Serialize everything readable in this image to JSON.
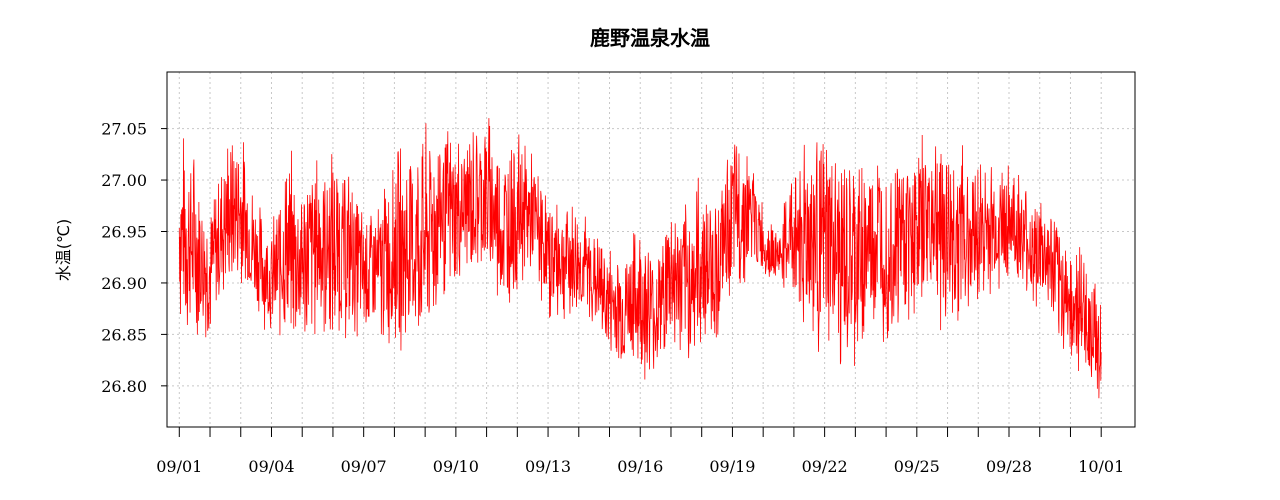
{
  "chart_data": {
    "type": "line",
    "title": "鹿野温泉水温",
    "xlabel": "",
    "ylabel": "水温(℃)",
    "ylim": [
      26.76,
      27.105
    ],
    "yticks": [
      26.8,
      26.85,
      26.9,
      26.95,
      27.0,
      27.05
    ],
    "ytick_labels": [
      "26.80",
      "26.85",
      "26.90",
      "26.95",
      "27.00",
      "27.05"
    ],
    "xlim_days": [
      -0.4,
      31.1
    ],
    "xtick_days": [
      0,
      3,
      6,
      9,
      12,
      15,
      18,
      21,
      24,
      27,
      30
    ],
    "xtick_labels": [
      "09/01",
      "09/04",
      "09/07",
      "09/10",
      "09/13",
      "09/16",
      "09/19",
      "09/22",
      "09/25",
      "09/28",
      "10/01"
    ],
    "grid": true,
    "series": [
      {
        "color": "#ff0000",
        "x_days": [
          0,
          0.5,
          1,
          1.5,
          2,
          2.5,
          3,
          3.5,
          4,
          4.5,
          5,
          5.5,
          6,
          6.5,
          7,
          7.5,
          8,
          8.5,
          9,
          9.5,
          10,
          10.5,
          11,
          11.5,
          12,
          12.5,
          13,
          13.5,
          14,
          14.5,
          15,
          15.5,
          16,
          16.5,
          17,
          17.5,
          18,
          18.5,
          19,
          19.5,
          20,
          20.5,
          21,
          21.5,
          22,
          22.5,
          23,
          23.5,
          24,
          24.5,
          25,
          25.5,
          26,
          26.5,
          27,
          27.5,
          28,
          28.5,
          29,
          29.5,
          30
        ],
        "min": [
          26.85,
          26.83,
          26.84,
          26.88,
          26.88,
          26.87,
          26.84,
          26.83,
          26.82,
          26.84,
          26.83,
          26.84,
          26.84,
          26.83,
          26.83,
          26.82,
          26.82,
          26.87,
          26.88,
          26.9,
          26.89,
          26.86,
          26.88,
          26.9,
          26.86,
          26.86,
          26.86,
          26.85,
          26.82,
          26.81,
          26.8,
          26.8,
          26.83,
          26.81,
          26.82,
          26.84,
          26.88,
          26.9,
          26.9,
          26.9,
          26.87,
          26.82,
          26.82,
          26.8,
          26.8,
          26.84,
          26.84,
          26.84,
          26.87,
          26.86,
          26.83,
          26.86,
          26.87,
          26.88,
          26.9,
          26.87,
          26.87,
          26.84,
          26.81,
          26.8,
          26.78
        ],
        "max": [
          27.06,
          27.04,
          26.98,
          27.05,
          27.06,
          26.99,
          26.96,
          27.04,
          27.02,
          27.04,
          27.04,
          27.02,
          26.98,
          26.99,
          27.04,
          27.05,
          27.06,
          27.07,
          27.05,
          27.06,
          27.08,
          27.04,
          27.06,
          27.03,
          26.99,
          26.99,
          26.98,
          26.96,
          26.94,
          26.94,
          26.97,
          26.94,
          26.99,
          26.98,
          27.02,
          26.99,
          27.05,
          27.04,
          26.98,
          26.95,
          27.03,
          27.07,
          27.05,
          27.04,
          27.03,
          27.04,
          27.04,
          27.05,
          27.04,
          27.07,
          27.06,
          27.04,
          27.03,
          27.02,
          27.03,
          27.0,
          26.99,
          26.97,
          26.95,
          26.93,
          26.9
        ]
      }
    ]
  }
}
